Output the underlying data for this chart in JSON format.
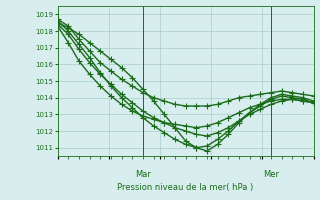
{
  "title": "",
  "xlabel": "Pression niveau de la mer( hPa )",
  "ylabel": "",
  "bg_color": "#d8eeee",
  "grid_color": "#aacccc",
  "line_color": "#1a6b1a",
  "ylim": [
    1010.5,
    1019.5
  ],
  "yticks": [
    1011,
    1012,
    1013,
    1014,
    1015,
    1016,
    1017,
    1018,
    1019
  ],
  "day_labels": [
    "Mar",
    "Mer"
  ],
  "day_positions": [
    0.333,
    0.833
  ],
  "series": [
    [
      1018.5,
      1018.2,
      1017.8,
      1017.3,
      1016.8,
      1016.3,
      1015.8,
      1015.2,
      1014.5,
      1013.8,
      1013.0,
      1012.2,
      1011.4,
      1011.0,
      1010.8,
      1011.2,
      1011.8,
      1012.5,
      1013.1,
      1013.6,
      1014.0,
      1014.2,
      1014.1,
      1014.0,
      1013.8
    ],
    [
      1018.6,
      1018.0,
      1017.2,
      1016.4,
      1015.5,
      1014.7,
      1014.0,
      1013.4,
      1012.8,
      1012.3,
      1011.9,
      1011.5,
      1011.2,
      1011.0,
      1011.1,
      1011.5,
      1012.0,
      1012.6,
      1013.1,
      1013.5,
      1013.9,
      1014.1,
      1014.0,
      1013.9,
      1013.7
    ],
    [
      1018.4,
      1017.8,
      1016.9,
      1016.1,
      1015.4,
      1014.8,
      1014.2,
      1013.7,
      1013.2,
      1012.8,
      1012.5,
      1012.2,
      1012.0,
      1011.8,
      1011.7,
      1011.9,
      1012.2,
      1012.6,
      1013.0,
      1013.3,
      1013.6,
      1013.8,
      1013.9,
      1013.8,
      1013.7
    ],
    [
      1018.3,
      1017.3,
      1016.2,
      1015.4,
      1014.7,
      1014.1,
      1013.6,
      1013.2,
      1012.9,
      1012.7,
      1012.5,
      1012.4,
      1012.3,
      1012.2,
      1012.3,
      1012.5,
      1012.8,
      1013.1,
      1013.4,
      1013.6,
      1013.8,
      1013.9,
      1013.9,
      1013.8,
      1013.7
    ],
    [
      1018.7,
      1018.3,
      1017.5,
      1016.8,
      1016.1,
      1015.6,
      1015.1,
      1014.7,
      1014.3,
      1014.0,
      1013.8,
      1013.6,
      1013.5,
      1013.5,
      1013.5,
      1013.6,
      1013.8,
      1014.0,
      1014.1,
      1014.2,
      1014.3,
      1014.4,
      1014.3,
      1014.2,
      1014.1
    ]
  ],
  "marker": "+",
  "markersize": 4,
  "linewidth": 1.0
}
